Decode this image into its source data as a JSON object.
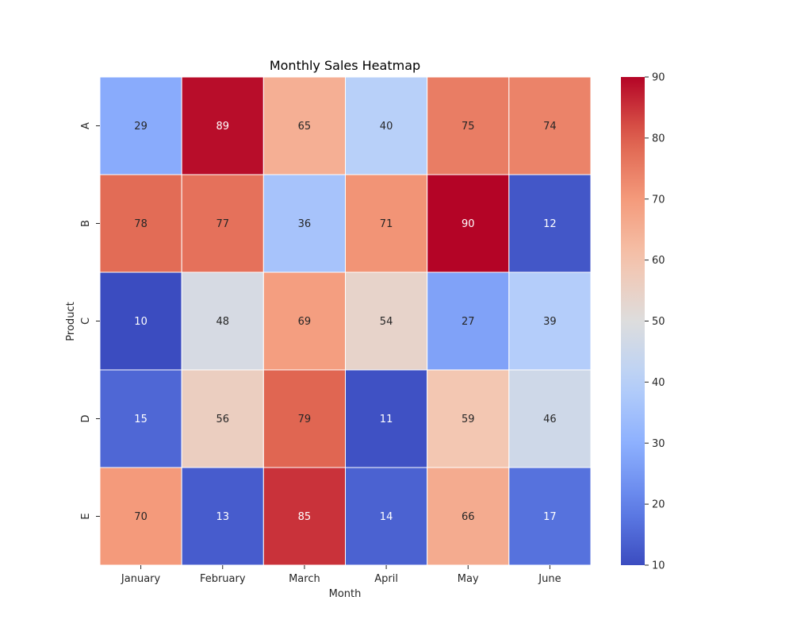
{
  "chart_data": {
    "type": "heatmap",
    "title": "Monthly Sales Heatmap",
    "xlabel": "Month",
    "ylabel": "Product",
    "x_categories": [
      "January",
      "February",
      "March",
      "April",
      "May",
      "June"
    ],
    "y_categories": [
      "A",
      "B",
      "C",
      "D",
      "E"
    ],
    "values": [
      [
        29,
        89,
        65,
        40,
        75,
        74
      ],
      [
        78,
        77,
        36,
        71,
        90,
        12
      ],
      [
        10,
        48,
        69,
        54,
        27,
        39
      ],
      [
        15,
        56,
        79,
        11,
        59,
        46
      ],
      [
        70,
        13,
        85,
        14,
        66,
        17
      ]
    ],
    "colormap": "coolwarm",
    "vmin": 10,
    "vmax": 90,
    "colorbar_ticks": [
      10,
      20,
      30,
      40,
      50,
      60,
      70,
      80,
      90
    ],
    "annotated": true,
    "cell_border_color": "#ffffff"
  }
}
